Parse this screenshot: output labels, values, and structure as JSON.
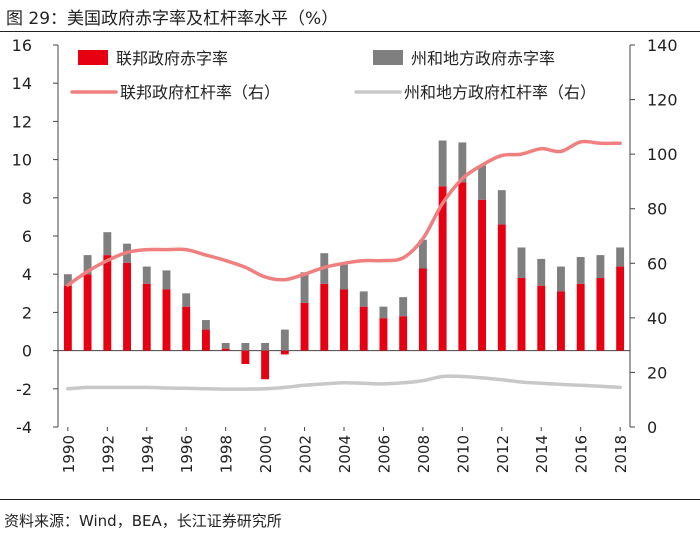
{
  "figure": {
    "title": "图 29：美国政府赤字率及杠杆率水平（%）",
    "source": "资料来源：Wind，BEA，长江证券研究所"
  },
  "chart_data": {
    "type": "bar+line",
    "title": "美国政府赤字率及杠杆率水平（%）",
    "categories": [
      "1990",
      "1991",
      "1992",
      "1993",
      "1994",
      "1995",
      "1996",
      "1997",
      "1998",
      "1999",
      "2000",
      "2001",
      "2002",
      "2003",
      "2004",
      "2005",
      "2006",
      "2007",
      "2008",
      "2009",
      "2010",
      "2011",
      "2012",
      "2013",
      "2014",
      "2015",
      "2016",
      "2017",
      "2018"
    ],
    "x_tick_labels": [
      "1990",
      "1992",
      "1994",
      "1996",
      "1998",
      "2000",
      "2002",
      "2004",
      "2006",
      "2008",
      "2010",
      "2012",
      "2014",
      "2016",
      "2018"
    ],
    "y_left": {
      "min": -4,
      "max": 16,
      "step": 2,
      "ticks": [
        "-4",
        "-2",
        "0",
        "2",
        "4",
        "6",
        "8",
        "10",
        "12",
        "14",
        "16"
      ]
    },
    "y_right": {
      "min": 0,
      "max": 140,
      "step": 20,
      "ticks": [
        "0",
        "20",
        "40",
        "60",
        "80",
        "100",
        "120",
        "140"
      ]
    },
    "stacked_bars": [
      {
        "name": "联邦政府赤字率",
        "color": "#e60012",
        "axis": "left",
        "values": [
          3.4,
          4.0,
          5.0,
          4.6,
          3.5,
          3.2,
          2.3,
          1.1,
          0.1,
          -0.7,
          -1.5,
          -0.2,
          2.5,
          3.5,
          3.2,
          2.3,
          1.7,
          1.8,
          4.3,
          8.6,
          8.8,
          7.9,
          6.6,
          3.8,
          3.4,
          3.1,
          3.5,
          3.8,
          4.4
        ]
      },
      {
        "name": "州和地方政府赤字率",
        "color": "#7f7f7f",
        "axis": "left",
        "values": [
          0.6,
          1.0,
          1.2,
          1.0,
          0.9,
          1.0,
          0.7,
          0.5,
          0.3,
          0.4,
          0.4,
          1.1,
          1.6,
          1.6,
          1.3,
          0.8,
          0.6,
          1.0,
          1.5,
          2.4,
          2.1,
          1.8,
          1.8,
          1.6,
          1.4,
          1.3,
          1.4,
          1.2,
          1.0
        ]
      }
    ],
    "lines": [
      {
        "name": "联邦政府杠杆率（右）",
        "color": "#f08080",
        "axis": "right",
        "points": [
          [
            1990,
            52
          ],
          [
            1991,
            57
          ],
          [
            1992,
            61
          ],
          [
            1993,
            64
          ],
          [
            1994,
            65
          ],
          [
            1995,
            65
          ],
          [
            1996,
            65
          ],
          [
            1997,
            63
          ],
          [
            1998,
            61
          ],
          [
            1999,
            58.5
          ],
          [
            2000,
            55
          ],
          [
            2001,
            54
          ],
          [
            2002,
            56
          ],
          [
            2003,
            58.5
          ],
          [
            2004,
            60
          ],
          [
            2005,
            61
          ],
          [
            2006,
            61
          ],
          [
            2007,
            62
          ],
          [
            2008,
            69
          ],
          [
            2009,
            82
          ],
          [
            2010,
            91
          ],
          [
            2011,
            96
          ],
          [
            2012,
            99.5
          ],
          [
            2013,
            100
          ],
          [
            2014,
            102
          ],
          [
            2015,
            101
          ],
          [
            2016,
            104.5
          ],
          [
            2017,
            104
          ],
          [
            2018,
            104
          ]
        ]
      },
      {
        "name": "州和地方政府杠杆率（右）",
        "color": "#c8c8c8",
        "axis": "right",
        "points": [
          [
            1990,
            14
          ],
          [
            1991,
            14.5
          ],
          [
            1992,
            14.5
          ],
          [
            1993,
            14.5
          ],
          [
            1994,
            14.5
          ],
          [
            1995,
            14.3
          ],
          [
            1996,
            14.2
          ],
          [
            1997,
            14
          ],
          [
            1998,
            13.9
          ],
          [
            1999,
            13.9
          ],
          [
            2000,
            14
          ],
          [
            2001,
            14.5
          ],
          [
            2002,
            15.3
          ],
          [
            2003,
            15.8
          ],
          [
            2004,
            16.2
          ],
          [
            2005,
            16
          ],
          [
            2006,
            15.8
          ],
          [
            2007,
            16.2
          ],
          [
            2008,
            17
          ],
          [
            2009,
            18.5
          ],
          [
            2010,
            18.5
          ],
          [
            2011,
            18
          ],
          [
            2012,
            17.3
          ],
          [
            2013,
            16.5
          ],
          [
            2014,
            16
          ],
          [
            2015,
            15.6
          ],
          [
            2016,
            15.3
          ],
          [
            2017,
            14.9
          ],
          [
            2018,
            14.5
          ]
        ]
      }
    ],
    "legend": [
      "联邦政府赤字率",
      "州和地方政府赤字率",
      "联邦政府杠杆率（右）",
      "州和地方政府杠杆率（右）"
    ]
  }
}
